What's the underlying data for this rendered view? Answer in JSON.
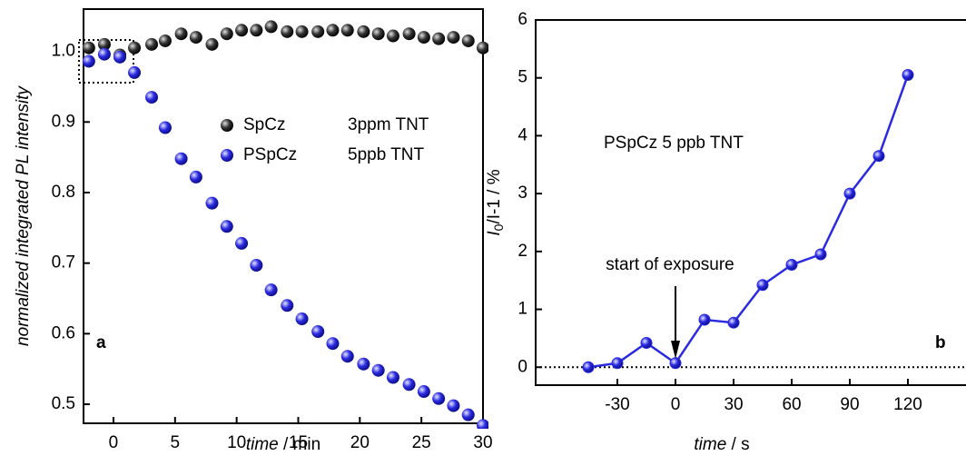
{
  "chart_data": [
    {
      "type": "scatter",
      "x_label": [
        "time",
        " / min"
      ],
      "y_label": "normalized integrated PL intensity",
      "panel_label": "a",
      "xlim": [
        -2.43,
        30
      ],
      "ylim": [
        0.473,
        1.06
      ],
      "xticks": [
        0,
        5,
        10,
        15,
        20,
        25,
        30
      ],
      "yticks": [
        0.5,
        0.6,
        0.7,
        0.8,
        0.9,
        {
          "value": 1.0,
          "label": "1.0"
        }
      ],
      "series": [
        {
          "name": "SpCz",
          "condition": "3ppm TNT",
          "color": "#000000",
          "x": [
            -2.0,
            -0.74,
            0.52,
            1.7,
            3.1,
            4.2,
            5.5,
            6.7,
            8.0,
            9.2,
            10.4,
            11.6,
            12.8,
            14.1,
            15.3,
            16.6,
            17.8,
            19.0,
            20.3,
            21.5,
            22.7,
            24.0,
            25.2,
            26.4,
            27.6,
            28.8,
            30.0
          ],
          "values": [
            1.005,
            1.01,
            0.995,
            1.005,
            1.01,
            1.015,
            1.025,
            1.02,
            1.01,
            1.025,
            1.03,
            1.03,
            1.035,
            1.028,
            1.028,
            1.028,
            1.03,
            1.03,
            1.028,
            1.025,
            1.022,
            1.025,
            1.02,
            1.018,
            1.02,
            1.015,
            1.005
          ]
        },
        {
          "name": "PSpCz",
          "condition": "5ppb  TNT",
          "color": "#2a2ae0",
          "x": [
            -2.0,
            -0.74,
            0.52,
            1.7,
            3.1,
            4.2,
            5.5,
            6.7,
            8.0,
            9.2,
            10.4,
            11.6,
            12.8,
            14.1,
            15.3,
            16.6,
            17.8,
            19.0,
            20.3,
            21.5,
            22.7,
            24.0,
            25.2,
            26.4,
            27.6,
            28.8,
            30.0
          ],
          "values": [
            0.986,
            0.996,
            0.992,
            0.97,
            0.935,
            0.892,
            0.848,
            0.822,
            0.785,
            0.752,
            0.728,
            0.697,
            0.662,
            0.64,
            0.621,
            0.603,
            0.586,
            0.568,
            0.557,
            0.548,
            0.538,
            0.528,
            0.518,
            0.508,
            0.498,
            0.485,
            0.47
          ]
        }
      ]
    },
    {
      "type": "line",
      "x_label": [
        "time",
        " / s"
      ],
      "y_label": [
        "I",
        "0",
        "/I-1 / %"
      ],
      "panel_label": "b",
      "annotation": "PSpCz 5 ppb TNT",
      "arrow_text": "start of exposure",
      "xlim": [
        -72.2,
        150
      ],
      "ylim": [
        -0.31,
        6
      ],
      "xticks": [
        -30,
        0,
        30,
        60,
        90,
        120
      ],
      "yticks": [
        0,
        1,
        2,
        3,
        4,
        5,
        6
      ],
      "reference_line": 0,
      "series": [
        {
          "color": "#2a2ae0",
          "x": [
            -45,
            -30,
            -15,
            0,
            15,
            30,
            45,
            60,
            75,
            90,
            105,
            120
          ],
          "values": [
            0.0,
            0.07,
            0.42,
            0.07,
            0.82,
            0.77,
            1.42,
            1.77,
            1.95,
            3.0,
            3.65,
            5.05
          ]
        }
      ]
    }
  ]
}
